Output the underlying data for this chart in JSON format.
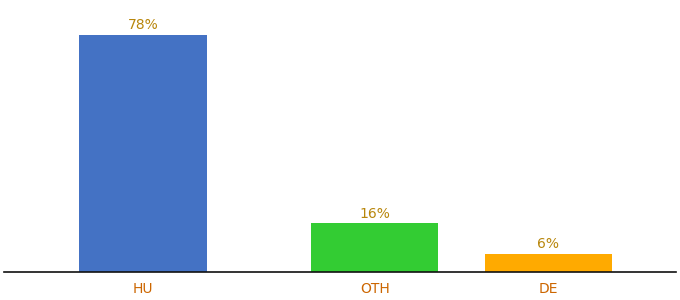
{
  "categories": [
    "HU",
    "OTH",
    "DE"
  ],
  "values": [
    78,
    16,
    6
  ],
  "labels": [
    "78%",
    "16%",
    "6%"
  ],
  "bar_colors": [
    "#4472c4",
    "#33cc33",
    "#ffaa00"
  ],
  "label_color": "#b8860b",
  "xlabel_color": "#cc6600",
  "background_color": "#ffffff",
  "ylim": [
    0,
    88
  ],
  "bar_width": 0.55,
  "x_positions": [
    1,
    2,
    2.75
  ],
  "label_fontsize": 10,
  "xlabel_fontsize": 10
}
